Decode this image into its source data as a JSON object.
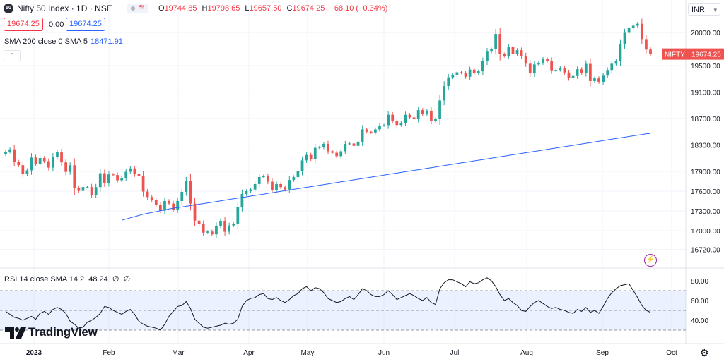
{
  "header": {
    "symbol_badge": "50",
    "title": "Nifty 50 Index · 1D · NSE",
    "ohlc": [
      {
        "k": "O",
        "v": "19744.85"
      },
      {
        "k": "H",
        "v": "19798.65"
      },
      {
        "k": "L",
        "v": "19657.50"
      },
      {
        "k": "C",
        "v": "19674.25"
      }
    ],
    "change": "−68.10 (−0.34%)",
    "sell_price": "19674.25",
    "spread": "0.00",
    "buy_price": "19674.25",
    "currency": "INR"
  },
  "indicators": {
    "sma_label": "SMA 200 close 0 SMA 5",
    "sma_value": "18471.91",
    "rsi_label": "RSI 14 close SMA 14 2",
    "rsi_value": "48.24",
    "rsi_extra1": "∅",
    "rsi_extra2": "∅"
  },
  "badge_label": "NIFTY",
  "badge_value": "19674.25",
  "logo_text": "TradingView",
  "colors": {
    "up": "#26a69a",
    "down": "#ef5350",
    "sma": "#2962ff",
    "rsi": "#131722",
    "band": "#2962ff"
  },
  "chart_data": {
    "type": "candlestick",
    "symbol": "NIFTY",
    "ylim": [
      16500,
      20300
    ],
    "y_ticks": [
      "20000.00",
      "19500.00",
      "19100.00",
      "18700.00",
      "18300.00",
      "17900.00",
      "17600.00",
      "17300.00",
      "17000.00",
      "16720.00"
    ],
    "x_labels": [
      "2023",
      "Feb",
      "Mar",
      "Apr",
      "May",
      "Jun",
      "Jul",
      "Aug",
      "Sep",
      "Oct"
    ],
    "last_price": 19674.25,
    "sma_200_end": 18471.91,
    "close": [
      18197,
      18232,
      18042,
      17992,
      17859,
      17914,
      18108,
      18015,
      18101,
      18053,
      17956,
      18118,
      18186,
      18035,
      17891,
      17992,
      17648,
      17604,
      17662,
      17662,
      17544,
      17661,
      17871,
      17721,
      17853,
      17844,
      17764,
      17800,
      17893,
      17944,
      17856,
      17826,
      17594,
      17511,
      17465,
      17393,
      17305,
      17451,
      17412,
      17321,
      17450,
      17589,
      17754,
      17412,
      17154,
      17105,
      16972,
      16988,
      16946,
      17077,
      17151,
      16985,
      17080,
      17107,
      17360,
      17557,
      17599,
      17624,
      17707,
      17813,
      17828,
      17743,
      17618,
      17706,
      17660,
      17624,
      17769,
      17812,
      17899,
      18065,
      18147,
      18089,
      18255,
      18265,
      18315,
      18203,
      18181,
      18129,
      18203,
      18314,
      18321,
      18285,
      18348,
      18534,
      18499,
      18487,
      18534,
      18593,
      18599,
      18756,
      18665,
      18601,
      18634,
      18755,
      18716,
      18691,
      18826,
      18771,
      18817,
      18665,
      18691,
      18972,
      19189,
      19322,
      19355,
      19398,
      19389,
      19331,
      19439,
      19385,
      19413,
      19564,
      19711,
      19745,
      19979,
      19672,
      19646,
      19778,
      19680,
      19733,
      19646,
      19528,
      19381,
      19517,
      19543,
      19597,
      19570,
      19428,
      19434,
      19465,
      19396,
      19310,
      19342,
      19444,
      19386,
      19526,
      19265,
      19306,
      19254,
      19347,
      19433,
      19528,
      19574,
      19819,
      19996,
      20070,
      20103,
      20133,
      19901,
      19742,
      19674
    ],
    "sma_200": [
      17160,
      17178,
      17196,
      17214,
      17232,
      17250,
      17263,
      17276,
      17290,
      17303,
      17316,
      17329,
      17342,
      17352,
      17360,
      17371,
      17381,
      17391,
      17402,
      17412,
      17422,
      17432,
      17443,
      17453,
      17463,
      17473,
      17484,
      17494,
      17504,
      17514,
      17525,
      17535,
      17545,
      17555,
      17566,
      17576,
      17586,
      17596,
      17607,
      17617,
      17627,
      17637,
      17648,
      17658,
      17668,
      17678,
      17689,
      17699,
      17709,
      17719,
      17730,
      17740,
      17750,
      17760,
      17771,
      17781,
      17791,
      17801,
      17812,
      17822,
      17832,
      17842,
      17853,
      17863,
      17873,
      17883,
      17894,
      17904,
      17914,
      17924,
      17935,
      17945,
      17955,
      17965,
      17976,
      17986,
      17996,
      18006,
      18017,
      18027,
      18037,
      18047,
      18058,
      18068,
      18078,
      18088,
      18099,
      18109,
      18119,
      18129,
      18140,
      18150,
      18160,
      18170,
      18181,
      18191,
      18201,
      18211,
      18222,
      18232,
      18242,
      18252,
      18263,
      18273,
      18283,
      18293,
      18304,
      18314,
      18324,
      18334,
      18345,
      18355,
      18365,
      18375,
      18386,
      18396,
      18406,
      18416,
      18427,
      18437,
      18447,
      18457,
      18468,
      18472
    ],
    "rsi_14": [
      49,
      46,
      43,
      42,
      40,
      42,
      44,
      41,
      47,
      49,
      46,
      51,
      53,
      51,
      47,
      39,
      36,
      32,
      33,
      38,
      40,
      43,
      47,
      54,
      53,
      50,
      48,
      46,
      49,
      51,
      46,
      39,
      36,
      34,
      33,
      32,
      30,
      36,
      44,
      49,
      54,
      55,
      59,
      52,
      41,
      37,
      33,
      32,
      33,
      34,
      35,
      37,
      36,
      37,
      41,
      54,
      60,
      62,
      63,
      66,
      67,
      62,
      61,
      63,
      60,
      58,
      61,
      65,
      67,
      72,
      74,
      70,
      73,
      72,
      68,
      62,
      60,
      58,
      59,
      62,
      64,
      61,
      66,
      72,
      70,
      66,
      64,
      64,
      66,
      70,
      66,
      61,
      63,
      65,
      67,
      65,
      62,
      60,
      63,
      58,
      56,
      72,
      78,
      81,
      81,
      79,
      77,
      74,
      79,
      77,
      78,
      81,
      83,
      80,
      74,
      66,
      60,
      62,
      58,
      55,
      50,
      49,
      54,
      58,
      60,
      57,
      54,
      52,
      53,
      51,
      50,
      48,
      47,
      51,
      49,
      53,
      48,
      50,
      47,
      54,
      62,
      68,
      72,
      75,
      76,
      77,
      70,
      63,
      55,
      50,
      48
    ],
    "rsi_ylim": [
      20,
      90
    ],
    "rsi_ticks": [
      "80.00",
      "60.00",
      "40.00"
    ],
    "rsi_bands": {
      "upper": 70,
      "middle": 50,
      "lower": 30
    }
  }
}
